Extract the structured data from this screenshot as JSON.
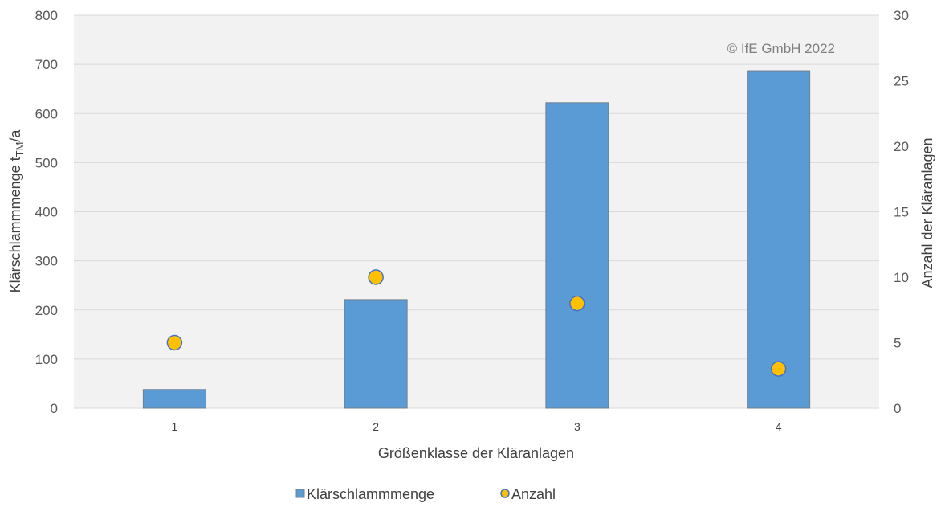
{
  "chart_data": {
    "type": "bar",
    "categories": [
      "1",
      "2",
      "3",
      "4"
    ],
    "series": [
      {
        "name": "Klärschlammmenge",
        "type": "bar",
        "axis": "left",
        "values": [
          38,
          221,
          622,
          687
        ]
      },
      {
        "name": "Anzahl",
        "type": "scatter",
        "axis": "right",
        "values": [
          5,
          10,
          8,
          3
        ]
      }
    ],
    "xlabel": "Größenklasse der Kläranlagen",
    "ylabel_main": "Klärschlammmenge t",
    "ylabel_sub": "TM",
    "ylabel_suffix": "/a",
    "y2label": "Anzahl der Kläranlagen",
    "ylim": [
      0,
      800
    ],
    "y2lim": [
      0,
      30
    ],
    "yticks": [
      "0",
      "100",
      "200",
      "300",
      "400",
      "500",
      "600",
      "700",
      "800"
    ],
    "y2ticks": [
      "0",
      "5",
      "10",
      "15",
      "20",
      "25",
      "30"
    ],
    "annotation": "© IfE GmbH 2022",
    "grid": true,
    "legend_position": "bottom",
    "colors": {
      "bar_fill": "#5b9bd5",
      "bar_stroke": "#6f7f8f",
      "marker_fill": "#ffc000",
      "marker_stroke": "#4472c4",
      "plot_bg": "#f2f2f2",
      "grid": "#d9d9d9"
    }
  }
}
